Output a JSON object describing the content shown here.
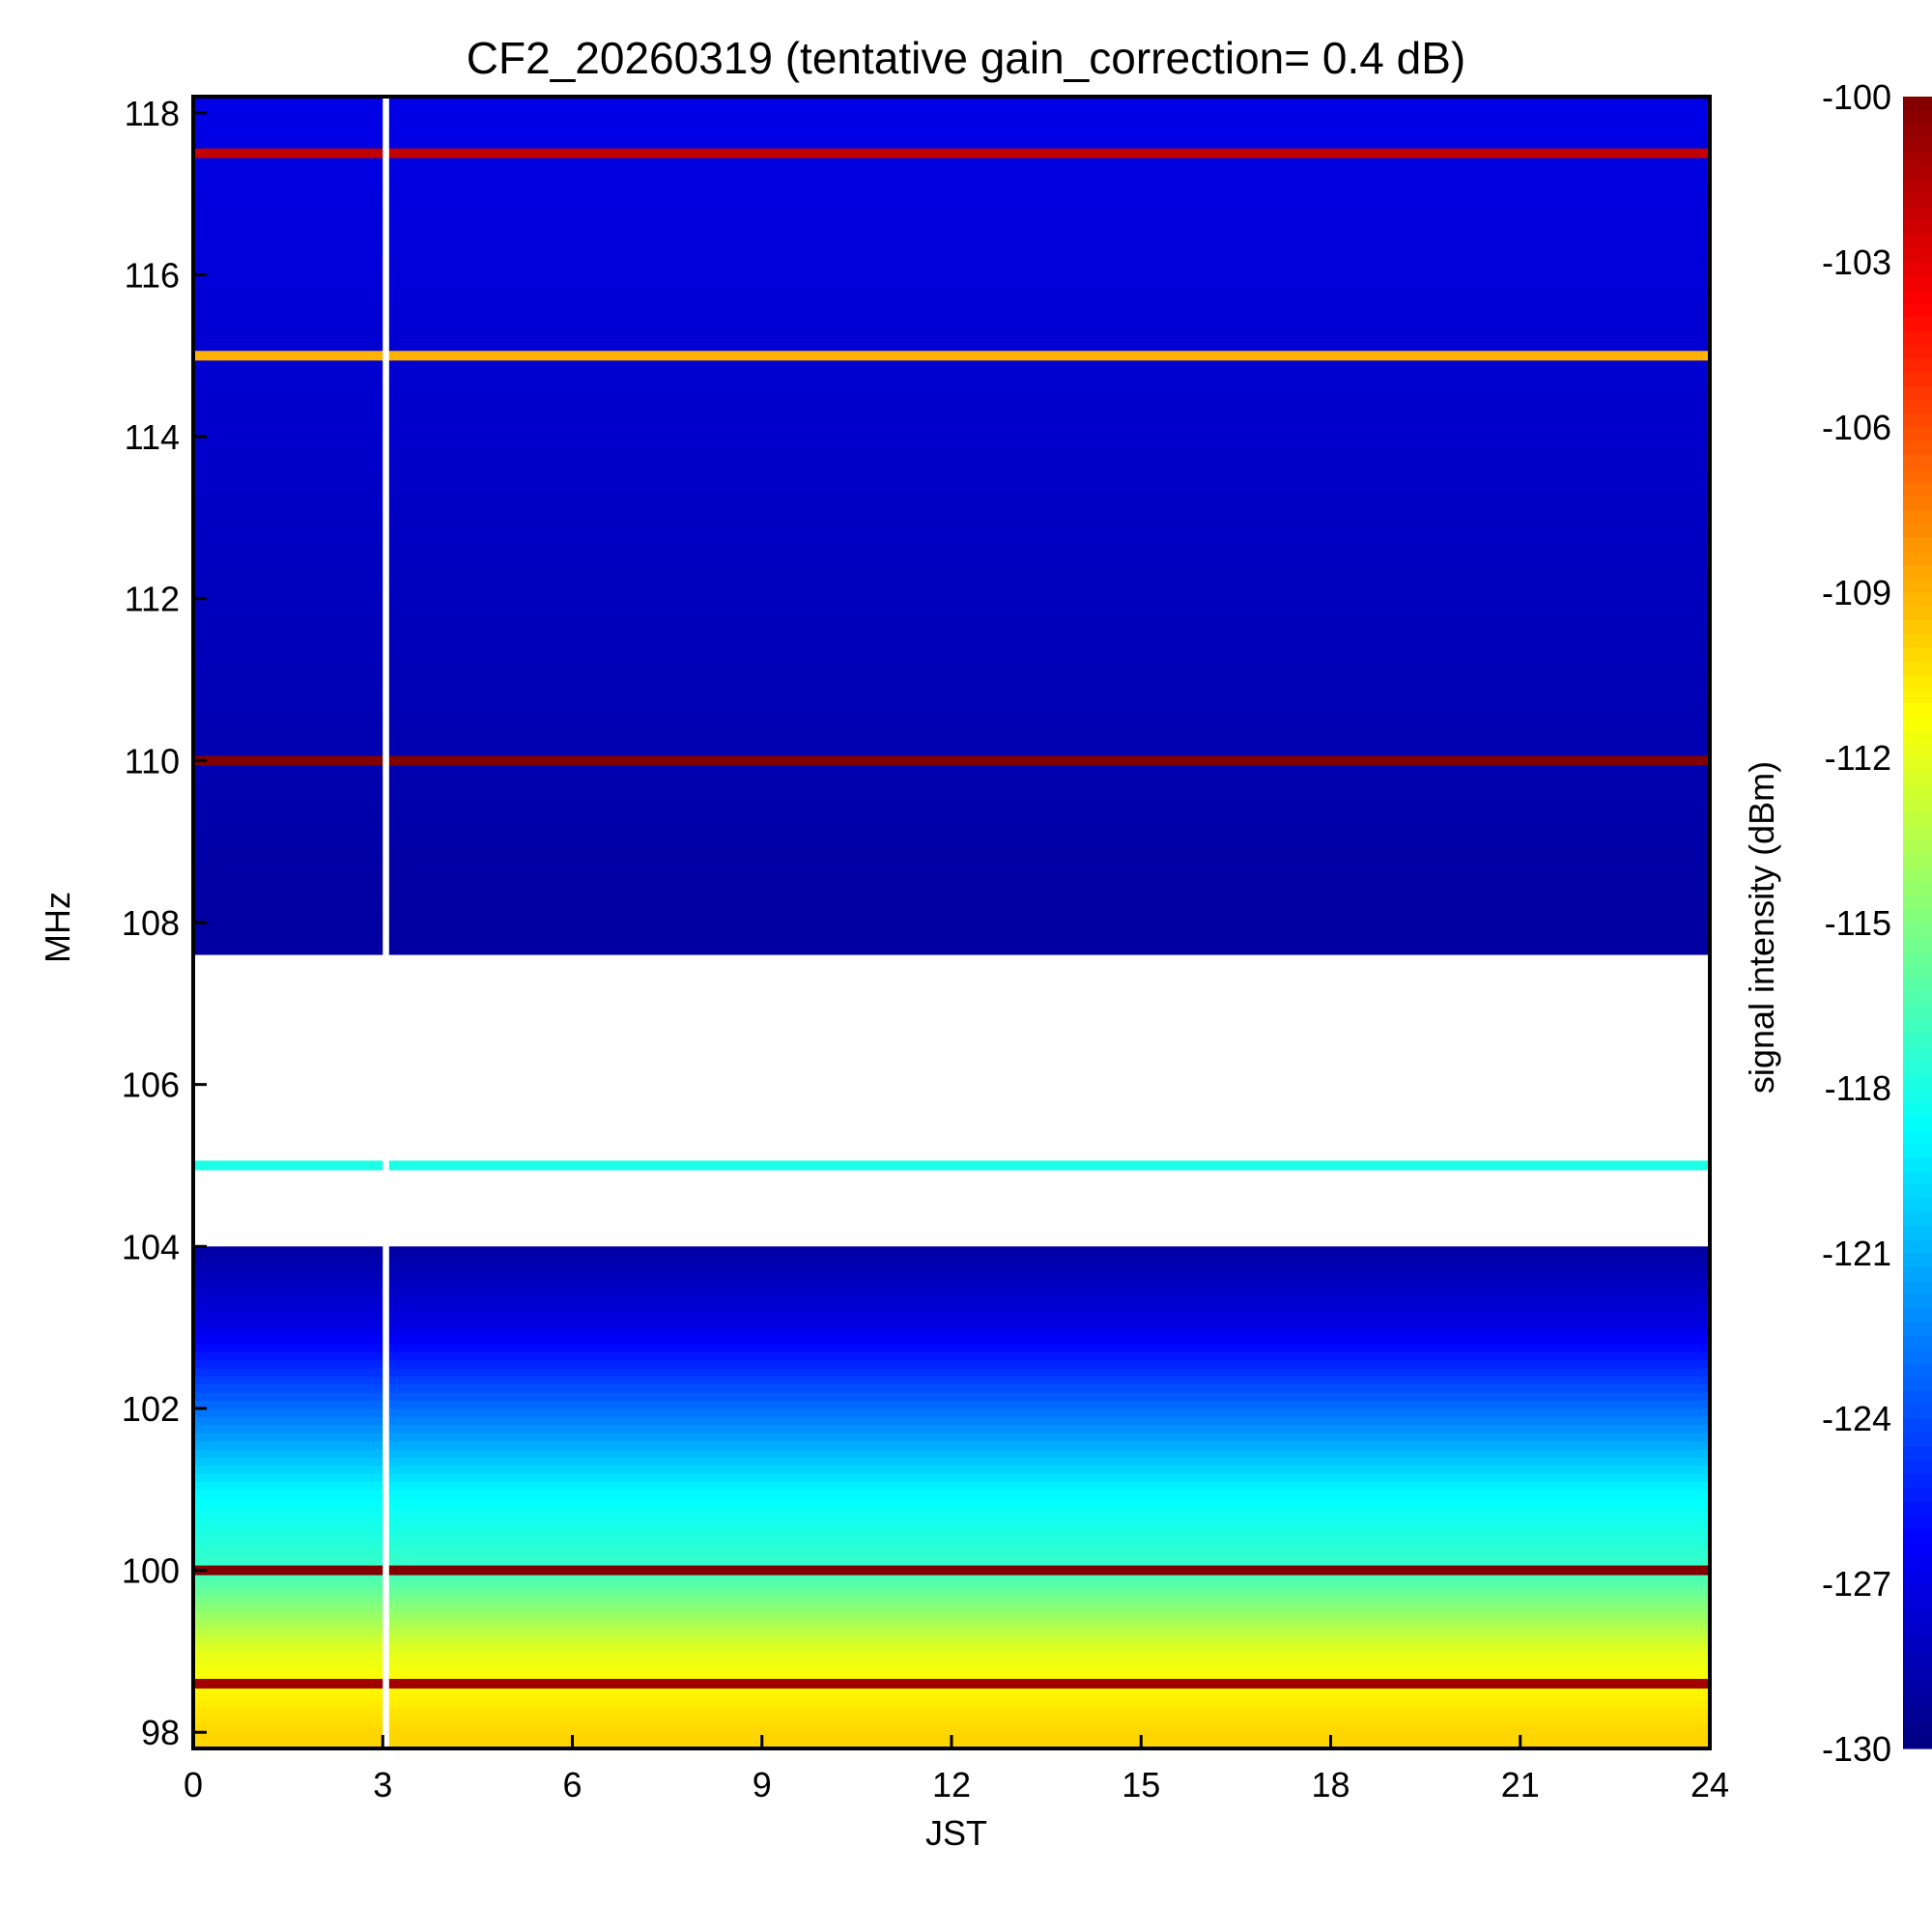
{
  "chart_data": {
    "type": "heatmap",
    "title": "CF2_20260319 (tentative gain_correction=  0.4 dB)",
    "xlabel": "JST",
    "ylabel": "MHz",
    "colorbar_label": "signal intensity (dBm)",
    "xlim": [
      0,
      24
    ],
    "ylim": [
      97.8,
      118.2
    ],
    "clim": [
      -130,
      -100
    ],
    "x_ticks": [
      "0",
      "3",
      "6",
      "9",
      "12",
      "15",
      "18",
      "21",
      "24"
    ],
    "y_ticks": [
      "98",
      "100",
      "102",
      "104",
      "106",
      "108",
      "110",
      "112",
      "114",
      "116",
      "118"
    ],
    "colorbar_ticks": [
      "-100",
      "-103",
      "-106",
      "-109",
      "-112",
      "-115",
      "-118",
      "-121",
      "-124",
      "-127",
      "-130"
    ],
    "data_gap": {
      "x_start": 3.0,
      "x_end": 3.1
    },
    "saturated_band": {
      "freq_min": 104.0,
      "freq_max": 107.6,
      "note": "white = above scale"
    },
    "strong_carriers": [
      {
        "freq": 117.5,
        "level": -102
      },
      {
        "freq": 115.0,
        "level": -109
      },
      {
        "freq": 110.0,
        "level": -100
      },
      {
        "freq": 105.0,
        "level": -118
      },
      {
        "freq": 100.0,
        "level": -100
      },
      {
        "freq": 98.6,
        "level": -101
      }
    ],
    "background_profile": [
      {
        "freq": 98.0,
        "level": -110
      },
      {
        "freq": 99.0,
        "level": -112
      },
      {
        "freq": 100.0,
        "level": -117
      },
      {
        "freq": 101.0,
        "level": -119
      },
      {
        "freq": 102.0,
        "level": -123
      },
      {
        "freq": 103.0,
        "level": -127
      },
      {
        "freq": 104.0,
        "level": -129
      },
      {
        "freq": 108.0,
        "level": -129
      },
      {
        "freq": 118.0,
        "level": -127
      }
    ]
  }
}
